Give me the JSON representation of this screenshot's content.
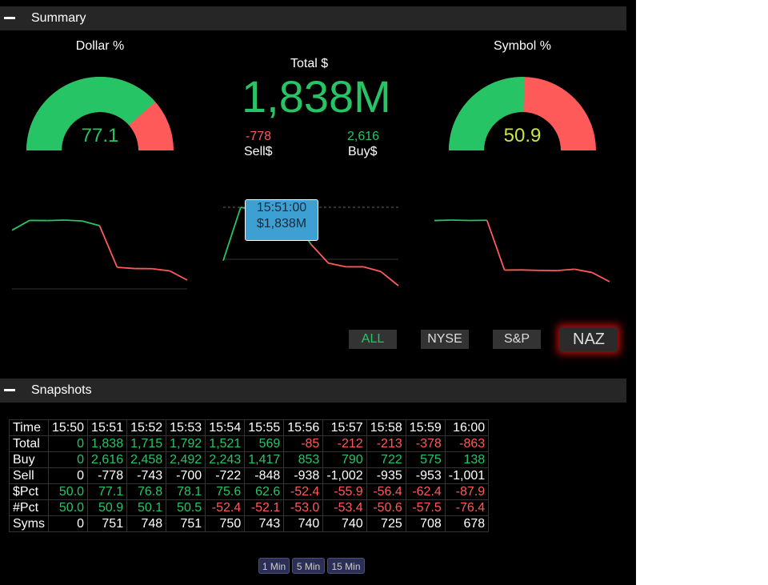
{
  "colors": {
    "positive": "#27c466",
    "negative": "#ff5a5a",
    "neutral": "#ffffff",
    "accent_yellow": "#c8e63c",
    "tooltip_bg": "#3d9fd2"
  },
  "summary": {
    "title": "Summary",
    "collapse_icon": "minus-icon",
    "dollar_gauge": {
      "title": "Dollar %",
      "value": "77.1",
      "fraction": 0.771,
      "value_color": "#27c466"
    },
    "symbol_gauge": {
      "title": "Symbol %",
      "value": "50.9",
      "fraction": 0.509,
      "value_color": "#c8e63c"
    },
    "total": {
      "label": "Total $",
      "value": "1,838M"
    },
    "sell": {
      "value": "-778",
      "label": "Sell$"
    },
    "buy": {
      "value": "2,616",
      "label": "Buy$"
    },
    "tooltip": {
      "time": "15:51:00",
      "value": "$1,838M"
    },
    "sparklines": {
      "dollar_pct": [
        50.0,
        77.1,
        76.8,
        78.1,
        75.6,
        62.6,
        -52.4,
        -55.9,
        -56.4,
        -62.4,
        -87.9
      ],
      "total": [
        0,
        1838,
        1715,
        1792,
        1521,
        569,
        -85,
        -212,
        -213,
        -378,
        -863
      ],
      "symbol_pct": [
        50.0,
        50.9,
        50.1,
        50.5,
        -52.4,
        -52.1,
        -53.0,
        -53.4,
        -50.6,
        -57.5,
        -76.4
      ]
    },
    "exchanges": [
      {
        "label": "ALL"
      },
      {
        "label": "NYSE"
      },
      {
        "label": "S&P"
      },
      {
        "label": "NAZ"
      }
    ]
  },
  "snapshots": {
    "title": "Snapshots",
    "collapse_icon": "minus-icon",
    "header": {
      "label": "Time",
      "cells": [
        "15:50",
        "15:51",
        "15:52",
        "15:53",
        "15:54",
        "15:55",
        "15:56",
        "15:57",
        "15:58",
        "15:59",
        "16:00"
      ]
    },
    "rows": [
      {
        "label": "Total",
        "cells": [
          "0",
          "1,838",
          "1,715",
          "1,792",
          "1,521",
          "569",
          "-85",
          "-212",
          "-213",
          "-378",
          "-863"
        ],
        "colored": true
      },
      {
        "label": "Buy",
        "cells": [
          "0",
          "2,616",
          "2,458",
          "2,492",
          "2,243",
          "1,417",
          "853",
          "790",
          "722",
          "575",
          "138"
        ],
        "colored": true
      },
      {
        "label": "Sell",
        "cells": [
          "0",
          "-778",
          "-743",
          "-700",
          "-722",
          "-848",
          "-938",
          "-1,002",
          "-935",
          "-953",
          "-1,001"
        ],
        "colored": false
      },
      {
        "label": "$Pct",
        "cells": [
          "50.0",
          "77.1",
          "76.8",
          "78.1",
          "75.6",
          "62.6",
          "-52.4",
          "-55.9",
          "-56.4",
          "-62.4",
          "-87.9"
        ],
        "colored": true
      },
      {
        "label": "#Pct",
        "cells": [
          "50.0",
          "50.9",
          "50.1",
          "50.5",
          "-52.4",
          "-52.1",
          "-53.0",
          "-53.4",
          "-50.6",
          "-57.5",
          "-76.4"
        ],
        "colored": true
      },
      {
        "label": "Syms",
        "cells": [
          "0",
          "751",
          "748",
          "751",
          "750",
          "743",
          "740",
          "740",
          "725",
          "708",
          "678"
        ],
        "colored": false
      }
    ],
    "intervals": [
      {
        "label": "1 Min"
      },
      {
        "label": "5 Min"
      },
      {
        "label": "15 Min"
      }
    ]
  }
}
